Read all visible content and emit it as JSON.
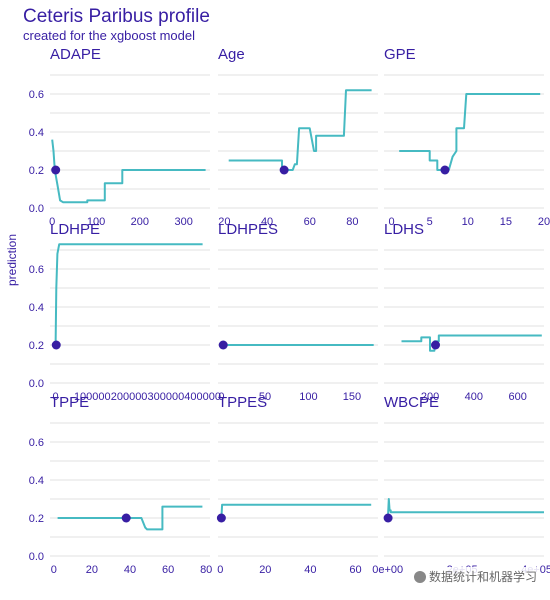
{
  "header": {
    "title": "Ceteris Paribus profile",
    "subtitle": "created for the xgboost model"
  },
  "y_axis_label": "prediction",
  "watermark": "数据统计和机器学习",
  "colors": {
    "line": "#46bac2",
    "point": "#371ea3",
    "text": "#371ea3",
    "grid": "#e0e0e0"
  },
  "chart_data": {
    "type": "line",
    "layout": "facet-grid 3x3",
    "ylabel": "prediction",
    "ylim": [
      0,
      0.7
    ],
    "yticks": [
      0.0,
      0.2,
      0.4,
      0.6
    ],
    "ytick_labels": [
      "0.0",
      "0.2",
      "0.4",
      "0.6"
    ],
    "panels": [
      {
        "name": "ADAPE",
        "xlim": [
          -5,
          360
        ],
        "xticks": [
          0,
          100,
          200,
          300
        ],
        "xtick_labels": [
          "0",
          "100",
          "200",
          "300"
        ],
        "line": [
          [
            0,
            0.36
          ],
          [
            3,
            0.3
          ],
          [
            6,
            0.2
          ],
          [
            12,
            0.12
          ],
          [
            18,
            0.04
          ],
          [
            25,
            0.03
          ],
          [
            40,
            0.03
          ],
          [
            60,
            0.03
          ],
          [
            80,
            0.03
          ],
          [
            80,
            0.04
          ],
          [
            120,
            0.04
          ],
          [
            120,
            0.13
          ],
          [
            160,
            0.13
          ],
          [
            160,
            0.2
          ],
          [
            350,
            0.2
          ]
        ],
        "point": [
          8,
          0.2
        ]
      },
      {
        "name": "Age",
        "xlim": [
          17,
          92
        ],
        "xticks": [
          20,
          40,
          60,
          80
        ],
        "xtick_labels": [
          "20",
          "40",
          "60",
          "80"
        ],
        "line": [
          [
            22,
            0.25
          ],
          [
            47,
            0.25
          ],
          [
            47,
            0.2
          ],
          [
            52,
            0.2
          ],
          [
            53,
            0.23
          ],
          [
            54,
            0.23
          ],
          [
            55,
            0.42
          ],
          [
            60,
            0.42
          ],
          [
            62,
            0.3
          ],
          [
            63,
            0.3
          ],
          [
            63,
            0.38
          ],
          [
            76,
            0.38
          ],
          [
            77,
            0.62
          ],
          [
            89,
            0.62
          ]
        ],
        "point": [
          48,
          0.2
        ]
      },
      {
        "name": "GPE",
        "xlim": [
          -1,
          20
        ],
        "xticks": [
          0,
          5,
          10,
          15,
          20
        ],
        "xtick_labels": [
          "0",
          "5",
          "10",
          "15",
          "20"
        ],
        "line": [
          [
            1,
            0.3
          ],
          [
            5,
            0.3
          ],
          [
            5,
            0.25
          ],
          [
            6,
            0.25
          ],
          [
            6,
            0.2
          ],
          [
            7.5,
            0.2
          ],
          [
            8,
            0.27
          ],
          [
            8.5,
            0.3
          ],
          [
            8.5,
            0.42
          ],
          [
            9.5,
            0.42
          ],
          [
            9.8,
            0.6
          ],
          [
            19.5,
            0.6
          ]
        ],
        "point": [
          7,
          0.2
        ]
      },
      {
        "name": "LDHPE",
        "xlim": [
          -15000,
          420000
        ],
        "xticks": [
          0,
          100000,
          200000,
          300000,
          400000
        ],
        "xtick_labels": [
          "0",
          "100000",
          "200000",
          "300000",
          "400000"
        ],
        "line": [
          [
            100,
            0.2
          ],
          [
            2000,
            0.5
          ],
          [
            5000,
            0.68
          ],
          [
            10000,
            0.73
          ],
          [
            400000,
            0.73
          ]
        ],
        "point": [
          2000,
          0.2
        ]
      },
      {
        "name": "LDHPES",
        "xlim": [
          -4,
          180
        ],
        "xticks": [
          0,
          50,
          100,
          150
        ],
        "xtick_labels": [
          "0",
          "50",
          "100",
          "150"
        ],
        "line": [
          [
            1,
            0.2
          ],
          [
            175,
            0.2
          ]
        ],
        "point": [
          2,
          0.2
        ]
      },
      {
        "name": "LDHS",
        "xlim": [
          -10,
          720
        ],
        "xticks": [
          200,
          400,
          600
        ],
        "xtick_labels": [
          "200",
          "400",
          "600"
        ],
        "line": [
          [
            70,
            0.22
          ],
          [
            160,
            0.22
          ],
          [
            160,
            0.24
          ],
          [
            200,
            0.24
          ],
          [
            200,
            0.17
          ],
          [
            220,
            0.17
          ],
          [
            220,
            0.22
          ],
          [
            240,
            0.22
          ],
          [
            240,
            0.25
          ],
          [
            710,
            0.25
          ]
        ],
        "point": [
          225,
          0.2
        ]
      },
      {
        "name": "TPPE",
        "xlim": [
          -2,
          82
        ],
        "xticks": [
          0,
          20,
          40,
          60,
          80
        ],
        "xtick_labels": [
          "0",
          "20",
          "40",
          "60",
          "80"
        ],
        "line": [
          [
            2,
            0.2
          ],
          [
            46,
            0.2
          ],
          [
            48,
            0.15
          ],
          [
            49,
            0.14
          ],
          [
            57,
            0.14
          ],
          [
            57,
            0.26
          ],
          [
            78,
            0.26
          ]
        ],
        "point": [
          38,
          0.2
        ]
      },
      {
        "name": "TPPES",
        "xlim": [
          -1,
          70
        ],
        "xticks": [
          0,
          20,
          40,
          60
        ],
        "xtick_labels": [
          "0",
          "20",
          "40",
          "60"
        ],
        "line": [
          [
            0.5,
            0.2
          ],
          [
            0.8,
            0.27
          ],
          [
            67,
            0.27
          ]
        ],
        "point": [
          0.5,
          0.2
        ]
      },
      {
        "name": "WBCPE",
        "xlim": [
          -10000,
          420000
        ],
        "xticks": [
          0,
          200000,
          400000
        ],
        "xtick_labels": [
          "0e+00",
          "2e+05",
          "4e+05"
        ],
        "line": [
          [
            1000,
            0.22
          ],
          [
            3000,
            0.3
          ],
          [
            5000,
            0.24
          ],
          [
            8000,
            0.24
          ],
          [
            8000,
            0.23
          ],
          [
            420000,
            0.23
          ]
        ],
        "point": [
          1000,
          0.2
        ]
      }
    ]
  }
}
